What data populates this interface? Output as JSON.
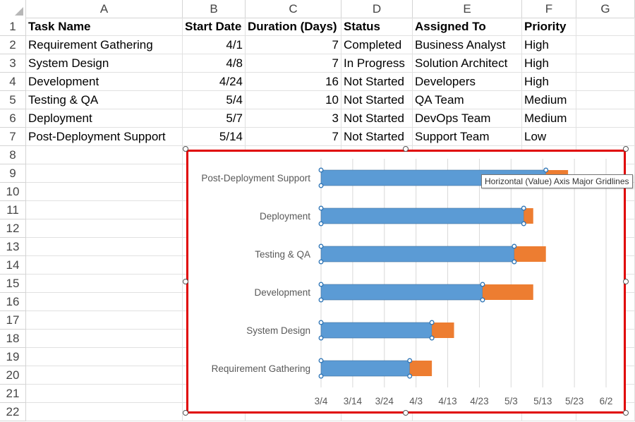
{
  "columns": [
    "A",
    "B",
    "C",
    "D",
    "E",
    "F",
    "G"
  ],
  "rows": [
    "1",
    "2",
    "3",
    "4",
    "5",
    "6",
    "7",
    "8",
    "9",
    "10",
    "11",
    "12",
    "13",
    "14",
    "15",
    "16",
    "17",
    "18",
    "19",
    "20",
    "21",
    "22"
  ],
  "table": {
    "headers": [
      "Task Name",
      "Start Date",
      "Duration (Days)",
      "Status",
      "Assigned To",
      "Priority"
    ],
    "rows": [
      [
        "Requirement Gathering",
        "4/1",
        "7",
        "Completed",
        "Business Analyst",
        "High"
      ],
      [
        "System Design",
        "4/8",
        "7",
        "In Progress",
        "Solution Architect",
        "High"
      ],
      [
        "Development",
        "4/24",
        "16",
        "Not Started",
        "Developers",
        "High"
      ],
      [
        "Testing & QA",
        "5/4",
        "10",
        "Not Started",
        "QA Team",
        "Medium"
      ],
      [
        "Deployment",
        "5/7",
        "3",
        "Not Started",
        "DevOps Team",
        "Medium"
      ],
      [
        "Post-Deployment Support",
        "5/14",
        "7",
        "Not Started",
        "Support Team",
        "Low"
      ]
    ]
  },
  "tooltip": "Horizontal (Value) Axis Major Gridlines",
  "colors": {
    "start_series": "#5b9bd5",
    "duration_series": "#ed7d31",
    "selection": "#e00000"
  },
  "chart_data": {
    "type": "bar",
    "orientation": "horizontal",
    "stacked": true,
    "categories": [
      "Requirement Gathering",
      "System Design",
      "Development",
      "Testing & QA",
      "Deployment",
      "Post-Deployment Support"
    ],
    "series": [
      {
        "values": [
          "4/1",
          "4/8",
          "4/24",
          "5/4",
          "5/7",
          "5/14"
        ]
      },
      {
        "values": [
          7,
          7,
          16,
          10,
          3,
          7
        ]
      }
    ],
    "x_ticks": [
      "3/4",
      "3/14",
      "3/24",
      "4/3",
      "4/13",
      "4/23",
      "5/3",
      "5/13",
      "5/23",
      "6/2"
    ],
    "title": "",
    "xlabel": "",
    "ylabel": "",
    "grid": "vertical",
    "legend": "none"
  }
}
